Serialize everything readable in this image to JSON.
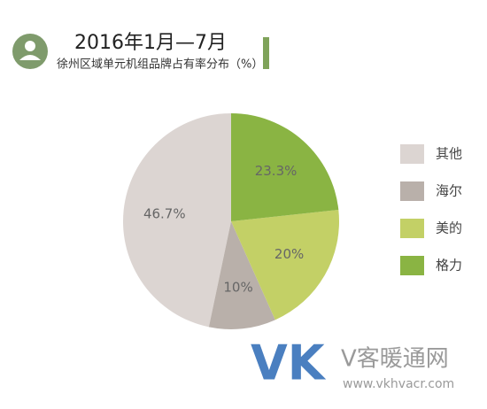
{
  "chart_data": {
    "type": "pie",
    "title": "2016年1月—7月",
    "subtitle": "徐州区域单元机组品牌占有率分布（%）",
    "categories": [
      "其他",
      "海尔",
      "美的",
      "格力"
    ],
    "values": [
      46.7,
      10,
      20,
      23.3
    ],
    "value_labels": [
      "46.7%",
      "10%",
      "20%",
      "23.3%"
    ],
    "colors": [
      "#dcd5d2",
      "#b9b0aa",
      "#c3d066",
      "#8ab443"
    ],
    "legend": "right"
  },
  "watermark": {
    "logo": "VK",
    "name": "V客暖通网",
    "url": "www.vkhvacr.com"
  }
}
